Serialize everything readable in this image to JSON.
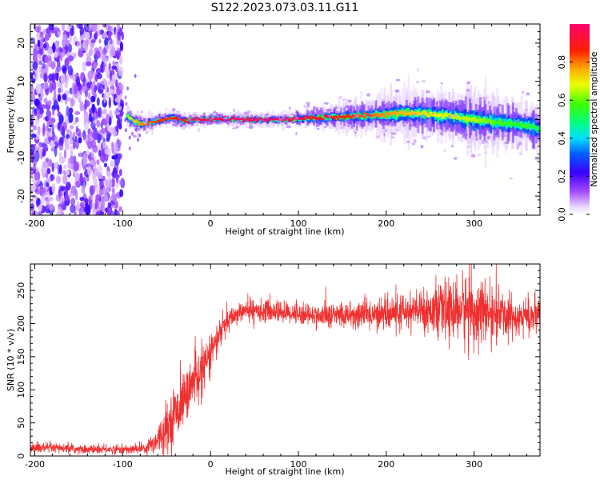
{
  "title": "S122.2023.073.03.11.G11",
  "chart_data": [
    {
      "type": "heatmap",
      "xlabel": "Height of straight line (km)",
      "ylabel": "Frequency (Hz)",
      "xlim": [
        -205,
        375
      ],
      "ylim": [
        -25,
        25
      ],
      "xticks": [
        -200,
        -100,
        0,
        100,
        200,
        300
      ],
      "yticks": [
        -20,
        -10,
        0,
        10,
        20
      ],
      "colorbar": {
        "label": "Normalized spectral amplitude",
        "range": [
          0,
          1
        ],
        "ticks": [
          0.0,
          0.2,
          0.4,
          0.6,
          0.8
        ],
        "tick_labels": [
          "0.0",
          "0.2",
          "0.4",
          "0.6",
          "0.8"
        ]
      },
      "noise_region_x": [
        -205,
        -100
      ],
      "ridge": {
        "x": [
          -95,
          -85,
          -75,
          -60,
          -45,
          -30,
          -10,
          0,
          20,
          50,
          80,
          100,
          130,
          160,
          190,
          220,
          250,
          280,
          300,
          320,
          340,
          360,
          375
        ],
        "freq": [
          0.8,
          -0.8,
          -1.2,
          -0.3,
          0.5,
          -0.3,
          0.0,
          0.1,
          0.1,
          0.0,
          0.0,
          0.2,
          0.6,
          0.8,
          1.2,
          1.6,
          1.5,
          0.7,
          0.0,
          -0.5,
          -1.0,
          -1.6,
          -2.5
        ],
        "amplitude": [
          0.6,
          0.75,
          0.8,
          0.85,
          0.85,
          0.9,
          0.95,
          0.97,
          0.98,
          0.98,
          0.98,
          0.95,
          0.9,
          0.85,
          0.8,
          0.75,
          0.7,
          0.65,
          0.65,
          0.6,
          0.55,
          0.55,
          0.5
        ],
        "spread_hz": [
          1.5,
          1.2,
          1.0,
          1.0,
          1.0,
          1.0,
          0.8,
          0.8,
          0.8,
          0.8,
          0.8,
          1.0,
          1.5,
          2.0,
          2.5,
          3.0,
          3.2,
          3.4,
          3.5,
          3.5,
          3.3,
          3.2,
          3.0
        ]
      }
    },
    {
      "type": "line",
      "xlabel": "Height of straight line (km)",
      "ylabel": "SNR (10 * v/v)",
      "xlim": [
        -205,
        375
      ],
      "ylim": [
        0,
        290
      ],
      "xticks": [
        -200,
        -100,
        0,
        100,
        200,
        300
      ],
      "yticks": [
        0,
        50,
        100,
        150,
        200,
        250
      ],
      "series": [
        {
          "color": "#f03030",
          "x": [
            -205,
            -180,
            -150,
            -120,
            -90,
            -75,
            -65,
            -55,
            -45,
            -35,
            -25,
            -15,
            -5,
            5,
            15,
            25,
            35,
            50,
            75,
            100,
            125,
            150,
            175,
            200,
            225,
            250,
            275,
            290,
            300,
            320,
            340,
            360,
            375
          ],
          "mean": [
            12,
            12,
            10,
            10,
            10,
            12,
            20,
            35,
            55,
            75,
            100,
            120,
            140,
            170,
            195,
            210,
            218,
            220,
            218,
            215,
            212,
            213,
            214,
            215,
            218,
            220,
            220,
            222,
            220,
            215,
            212,
            212,
            210
          ],
          "spread": [
            8,
            7,
            6,
            6,
            6,
            8,
            15,
            25,
            35,
            35,
            35,
            30,
            30,
            25,
            20,
            15,
            12,
            15,
            15,
            15,
            15,
            18,
            20,
            22,
            25,
            30,
            40,
            50,
            45,
            35,
            30,
            25,
            25
          ]
        }
      ]
    }
  ]
}
